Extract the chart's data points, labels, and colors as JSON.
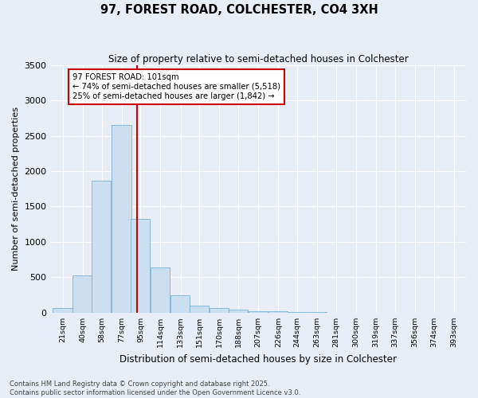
{
  "title1": "97, FOREST ROAD, COLCHESTER, CO4 3XH",
  "title2": "Size of property relative to semi-detached houses in Colchester",
  "xlabel": "Distribution of semi-detached houses by size in Colchester",
  "ylabel": "Number of semi-detached properties",
  "footer1": "Contains HM Land Registry data © Crown copyright and database right 2025.",
  "footer2": "Contains public sector information licensed under the Open Government Licence v3.0.",
  "annotation_line1": "97 FOREST ROAD: 101sqm",
  "annotation_line2": "← 74% of semi-detached houses are smaller (5,518)",
  "annotation_line3": "25% of semi-detached houses are larger (1,842) →",
  "bar_color": "#ccdff0",
  "bar_edge_color": "#7ab0d4",
  "vline_color": "#cc0000",
  "vline_x": 101,
  "background_color": "#e8eef8",
  "grid_color": "#ffffff",
  "categories": [
    "21sqm",
    "40sqm",
    "58sqm",
    "77sqm",
    "95sqm",
    "114sqm",
    "133sqm",
    "151sqm",
    "170sqm",
    "188sqm",
    "207sqm",
    "226sqm",
    "244sqm",
    "263sqm",
    "281sqm",
    "300sqm",
    "319sqm",
    "337sqm",
    "356sqm",
    "374sqm",
    "393sqm"
  ],
  "bin_centers": [
    21,
    40,
    58,
    77,
    95,
    114,
    133,
    151,
    170,
    188,
    207,
    226,
    244,
    263,
    281,
    300,
    319,
    337,
    356,
    374,
    393
  ],
  "bin_width": 19,
  "bar_heights": [
    65,
    530,
    1860,
    2650,
    1330,
    640,
    245,
    100,
    65,
    45,
    25,
    15,
    8,
    5,
    3,
    2,
    1,
    1,
    0,
    0,
    0
  ],
  "ylim": [
    0,
    3500
  ],
  "yticks": [
    0,
    500,
    1000,
    1500,
    2000,
    2500,
    3000,
    3500
  ]
}
